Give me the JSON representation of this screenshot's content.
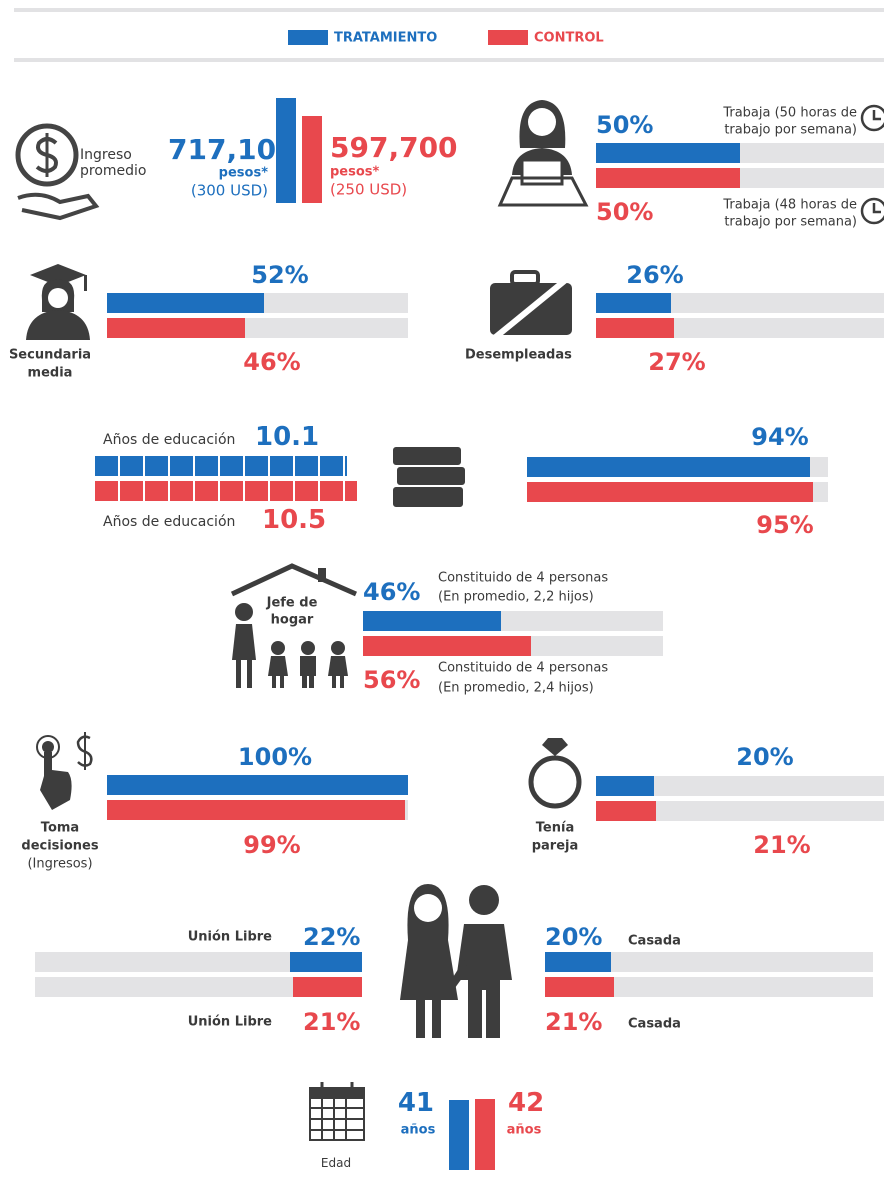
{
  "legend": {
    "treatment": {
      "label": "TRATAMIENTO",
      "color": "#1d6fbe"
    },
    "control": {
      "label": "CONTROL",
      "color": "#e8484d"
    }
  },
  "income": {
    "label": [
      "Ingreso",
      "promedio"
    ],
    "treatment": {
      "value": 717100,
      "label": "717,100",
      "unit": "pesos*",
      "usd": "(300 USD)"
    },
    "control": {
      "value": 597700,
      "label": "597,700",
      "unit": "pesos*",
      "usd": "(250 USD)"
    }
  },
  "work": {
    "treatment": {
      "value": 50,
      "label": "50%",
      "note": [
        "Trabaja (50 horas de",
        "trabajo por semana)"
      ]
    },
    "control": {
      "value": 50,
      "label": "50%",
      "note": [
        "Trabaja (48 horas de",
        "trabajo por semana)"
      ]
    }
  },
  "secondary": {
    "label": [
      "Secundaria",
      "media"
    ],
    "treatment": {
      "value": 52,
      "label": "52%"
    },
    "control": {
      "value": 46,
      "label": "46%"
    }
  },
  "unemployed": {
    "label": "Desempleadas",
    "treatment": {
      "value": 26,
      "label": "26%"
    },
    "control": {
      "value": 27,
      "label": "27%"
    }
  },
  "education": {
    "treatment": {
      "value": 10.1,
      "text": "Años de educación"
    },
    "control": {
      "value": 10.5,
      "text": "Años de educación"
    }
  },
  "books": {
    "treatment": {
      "value": 94,
      "label": "94%"
    },
    "control": {
      "value": 95,
      "label": "95%"
    }
  },
  "household": {
    "label": [
      "Jefe de",
      "hogar"
    ],
    "treatment": {
      "value": 46,
      "label": "46%",
      "note": [
        "Constituido de 4 personas",
        "(En promedio, 2,2 hijos)"
      ]
    },
    "control": {
      "value": 56,
      "label": "56%",
      "note": [
        "Constituido de 4 personas",
        "(En promedio, 2,4 hijos)"
      ]
    }
  },
  "decisions": {
    "label": [
      "Toma",
      "decisiones",
      "(Ingresos)"
    ],
    "treatment": {
      "value": 100,
      "label": "100%"
    },
    "control": {
      "value": 99,
      "label": "99%"
    }
  },
  "partner": {
    "label": [
      "Tenía",
      "pareja"
    ],
    "treatment": {
      "value": 20,
      "label": "20%"
    },
    "control": {
      "value": 21,
      "label": "21%"
    }
  },
  "free_union": {
    "treatment": {
      "value": 22,
      "label": "22%",
      "status": "Unión Libre"
    },
    "control": {
      "value": 21,
      "label": "21%",
      "status": "Unión Libre"
    }
  },
  "married": {
    "treatment": {
      "value": 20,
      "label": "20%",
      "status": "Casada"
    },
    "control": {
      "value": 21,
      "label": "21%",
      "status": "Casada"
    }
  },
  "age": {
    "label": "Edad",
    "treatment": {
      "value": 41,
      "unit": "años"
    },
    "control": {
      "value": 42,
      "unit": "años"
    }
  }
}
